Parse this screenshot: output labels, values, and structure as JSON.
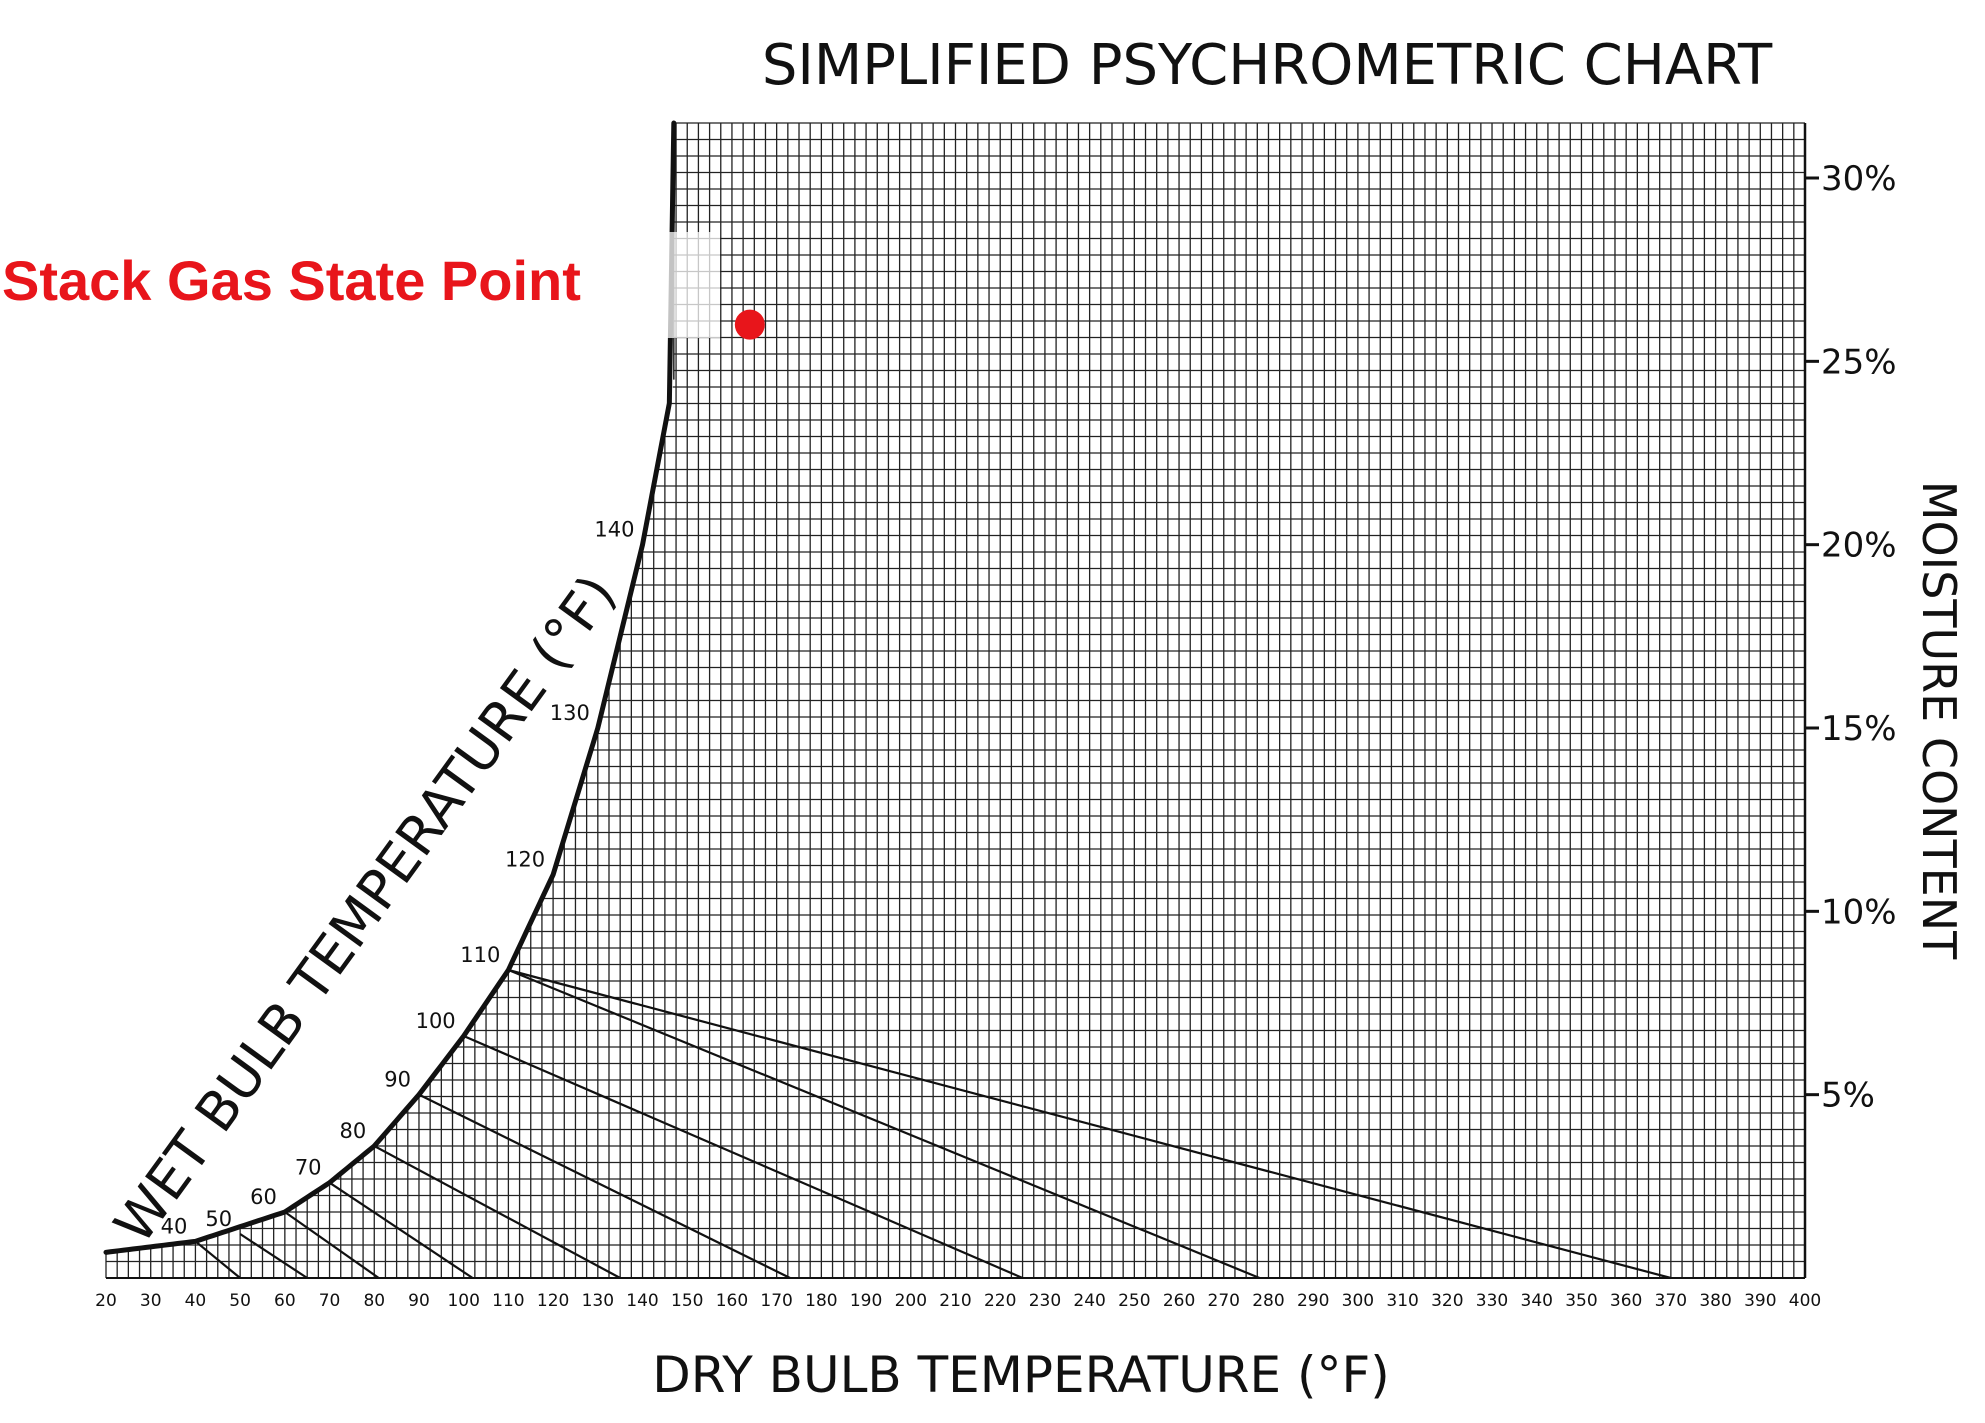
{
  "chart_data": {
    "type": "scatter",
    "title": "SIMPLIFIED PSYCHROMETRIC CHART",
    "xlabel": "DRY BULB TEMPERATURE (°F)",
    "ylabel": "MOISTURE CONTENT",
    "curve_label": "WET BULB TEMPERATURE (°F)",
    "xlim": [
      20,
      400
    ],
    "ylim": [
      0,
      31.5
    ],
    "grid": true,
    "x_ticks": [
      "20",
      "30",
      "40",
      "50",
      "60",
      "70",
      "80",
      "90",
      "100",
      "110",
      "120",
      "130",
      "140",
      "150",
      "160",
      "170",
      "180",
      "190",
      "200",
      "210",
      "220",
      "230",
      "240",
      "250",
      "260",
      "270",
      "280",
      "290",
      "300",
      "310",
      "320",
      "330",
      "340",
      "350",
      "360",
      "370",
      "380",
      "390",
      "400"
    ],
    "y_ticks": [
      {
        "value": 5,
        "label": "5%"
      },
      {
        "value": 10,
        "label": "10%"
      },
      {
        "value": 15,
        "label": "15%"
      },
      {
        "value": 20,
        "label": "20%"
      },
      {
        "value": 25,
        "label": "25%"
      },
      {
        "value": 30,
        "label": "30%"
      }
    ],
    "saturation_curve": [
      [
        20,
        0.7
      ],
      [
        40,
        1.0
      ],
      [
        60,
        1.8
      ],
      [
        70,
        2.6
      ],
      [
        80,
        3.6
      ],
      [
        90,
        5.0
      ],
      [
        100,
        6.6
      ],
      [
        110,
        8.4
      ],
      [
        120,
        11.0
      ],
      [
        130,
        15.0
      ],
      [
        140,
        20.0
      ],
      [
        147,
        24.5
      ]
    ],
    "wet_bulb_lines": [
      {
        "label": "40",
        "at": [
          40,
          1.0
        ],
        "end": [
          50,
          0
        ]
      },
      {
        "label": "50",
        "at": [
          50,
          1.2
        ],
        "end": [
          65,
          0
        ]
      },
      {
        "label": "60",
        "at": [
          60,
          1.8
        ],
        "end": [
          81,
          0
        ]
      },
      {
        "label": "70",
        "at": [
          70,
          2.6
        ],
        "end": [
          102,
          0
        ]
      },
      {
        "label": "80",
        "at": [
          80,
          3.6
        ],
        "end": [
          135,
          0
        ]
      },
      {
        "label": "90",
        "at": [
          90,
          5.0
        ],
        "end": [
          173,
          0
        ]
      },
      {
        "label": "100",
        "at": [
          100,
          6.6
        ],
        "end": [
          225,
          0
        ]
      },
      {
        "label": "110",
        "at": [
          110,
          8.4
        ],
        "end": [
          278,
          0
        ]
      },
      {
        "label": "120",
        "at": [
          120,
          11.0
        ],
        "end": null
      },
      {
        "label": "130",
        "at": [
          130,
          15.0
        ],
        "end": null
      },
      {
        "label": "140",
        "at": [
          140,
          20.0
        ],
        "end": null
      }
    ],
    "extra_line": {
      "from": [
        110,
        8.4
      ],
      "to": [
        370,
        0
      ]
    },
    "state_point": {
      "x": 164,
      "y": 26.0,
      "label": "Stack Gas State Point",
      "color": "#e8151b"
    }
  }
}
